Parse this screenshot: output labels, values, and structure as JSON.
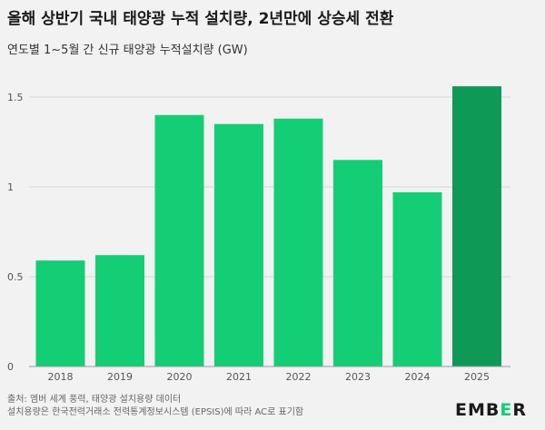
{
  "title": "올해 상반기 국내 태양광 누적 설치량, 2년만에 상승세 전환",
  "subtitle": "연도별 1~5월 간 신규 태양광 누적설치량 (GW)",
  "source_line1": "출처: 엠버 세계 풍력, 태양광 설치용량 데이터",
  "source_line2": "설치용량은 한국전력거래소 전력통계정보시스템 (EPSIS)에 따라 AC로 표기함",
  "logo": {
    "prefix": "EMB",
    "accent": "E",
    "suffix": "R"
  },
  "colors": {
    "bar": "#13ce74",
    "highlight": "#0e9a56",
    "grid": "#d6d6d6",
    "background": "#f2f2f2"
  },
  "chart_data": {
    "type": "bar",
    "title": "올해 상반기 국내 태양광 누적 설치량, 2년만에 상승세 전환",
    "subtitle": "연도별 1~5월 간 신규 태양광 누적설치량 (GW)",
    "categories": [
      "2018",
      "2019",
      "2020",
      "2021",
      "2022",
      "2023",
      "2024",
      "2025"
    ],
    "values": [
      0.59,
      0.62,
      1.4,
      1.35,
      1.38,
      1.15,
      0.97,
      1.56
    ],
    "highlight_index": 7,
    "ylim": [
      0,
      1.5
    ],
    "yticks": [
      0,
      0.5,
      1,
      1.5
    ],
    "ytick_labels": [
      "0",
      "0.5",
      "1",
      "1.5"
    ],
    "grid": true,
    "xlabel": "",
    "ylabel": ""
  }
}
